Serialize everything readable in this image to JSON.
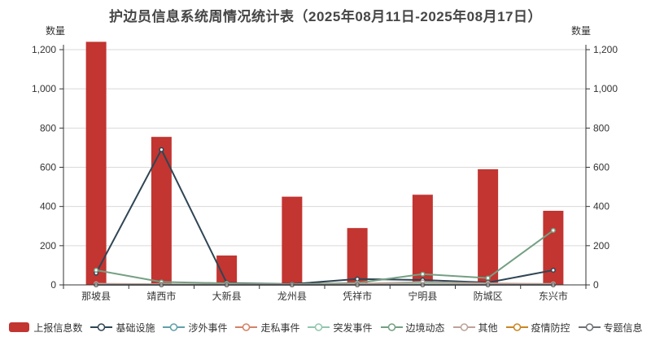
{
  "title": "护边员信息系统周情况统计表（2025年08月11日-2025年08月17日）",
  "y_axis": {
    "name_left": "数量",
    "name_right": "数量",
    "tick_labels": [
      "0",
      "200",
      "400",
      "600",
      "800",
      "1,000",
      "1,200"
    ]
  },
  "chart_data": {
    "type": "bar",
    "title": "护边员信息系统周情况统计表（2025年08月11日-2025年08月17日）",
    "categories": [
      "那坡县",
      "靖西市",
      "大新县",
      "龙州县",
      "凭祥市",
      "宁明县",
      "防城区",
      "东兴市"
    ],
    "series": [
      {
        "name": "上报信息数",
        "type": "bar",
        "color": "#c23531",
        "values": [
          1240,
          755,
          150,
          450,
          290,
          460,
          590,
          378
        ]
      },
      {
        "name": "基础设施",
        "type": "line",
        "color": "#2f4554",
        "values": [
          60,
          690,
          10,
          4,
          30,
          25,
          12,
          75
        ]
      },
      {
        "name": "涉外事件",
        "type": "line",
        "color": "#61a0a8",
        "values": [
          3,
          2,
          1,
          1,
          3,
          4,
          2,
          3
        ]
      },
      {
        "name": "走私事件",
        "type": "line",
        "color": "#d48265",
        "values": [
          1,
          1,
          0,
          0,
          2,
          8,
          3,
          1
        ]
      },
      {
        "name": "突发事件",
        "type": "line",
        "color": "#91c7ae",
        "values": [
          4,
          3,
          2,
          1,
          3,
          6,
          4,
          5
        ]
      },
      {
        "name": "边境动态",
        "type": "line",
        "color": "#749f83",
        "values": [
          75,
          15,
          8,
          3,
          10,
          55,
          35,
          278
        ]
      },
      {
        "name": "其他",
        "type": "line",
        "color": "#bda29a",
        "values": [
          6,
          3,
          2,
          1,
          5,
          15,
          8,
          4
        ]
      },
      {
        "name": "疫情防控",
        "type": "line",
        "color": "#ca8622",
        "values": [
          0,
          0,
          0,
          0,
          0,
          0,
          0,
          0
        ]
      },
      {
        "name": "专题信息",
        "type": "line",
        "color": "#6e7074",
        "values": [
          0,
          0,
          0,
          0,
          0,
          0,
          0,
          0
        ]
      }
    ],
    "xlabel": "",
    "ylabel": "数量",
    "ylim": [
      0,
      1200
    ],
    "grid": true,
    "legend_position": "bottom",
    "colors": {
      "grid_line": "#d9d9d9",
      "axis_line": "#333333",
      "text": "#333333",
      "marker_fill": "#ffffff"
    }
  }
}
